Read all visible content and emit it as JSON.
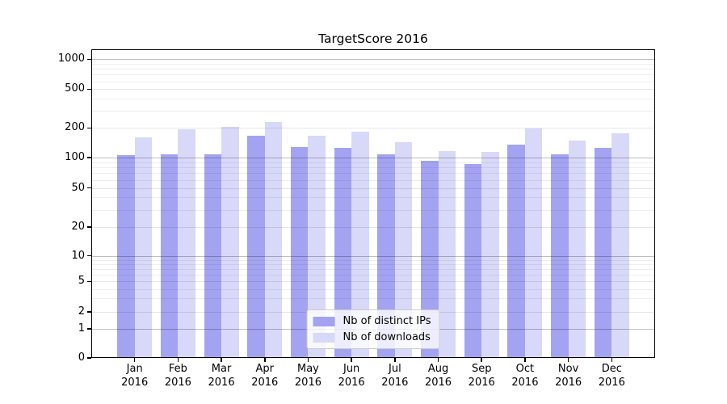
{
  "title": "TargetScore 2016",
  "chart_data": {
    "type": "bar",
    "title": "TargetScore 2016",
    "y_axis": {
      "scale": "symlog",
      "ticks": [
        0,
        1,
        2,
        5,
        10,
        20,
        50,
        100,
        200,
        500,
        1000
      ],
      "range": [
        0,
        1260
      ],
      "grid": true
    },
    "x_axis": {
      "categories": [
        "Jan",
        "Feb",
        "Mar",
        "Apr",
        "May",
        "Jun",
        "Jul",
        "Aug",
        "Sep",
        "Oct",
        "Nov",
        "Dec"
      ],
      "year_line": "2016"
    },
    "series": [
      {
        "name": "Nb of distinct IPs",
        "color": "#a3a3f2",
        "values": [
          105,
          108,
          107,
          165,
          128,
          126,
          108,
          93,
          87,
          135,
          107,
          126
        ]
      },
      {
        "name": "Nb of downloads",
        "color": "#d8d8f9",
        "values": [
          160,
          195,
          205,
          230,
          166,
          183,
          144,
          117,
          115,
          196,
          149,
          176
        ]
      }
    ],
    "legend": {
      "position": "lower center",
      "labels": [
        "Nb of distinct IPs",
        "Nb of downloads"
      ]
    }
  }
}
